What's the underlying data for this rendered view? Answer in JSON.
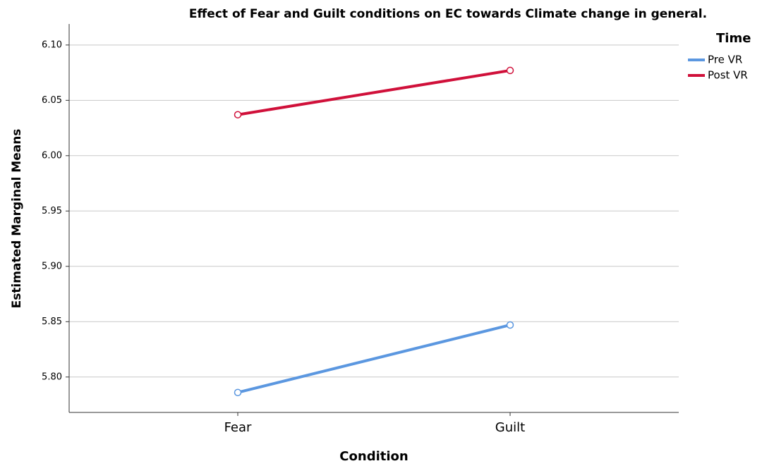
{
  "chart_data": {
    "type": "line",
    "title": "Effect of Fear and Guilt conditions on EC towards Climate change in general.",
    "x_label": "Condition",
    "y_label": "Estimated Marginal Means",
    "legend_title": "Time",
    "legend_position": "upper right",
    "grid": true,
    "categories": [
      "Fear",
      "Guilt"
    ],
    "series": [
      {
        "name": "Pre VR",
        "color": "#5b97e0",
        "values": [
          5.786,
          5.847
        ]
      },
      {
        "name": "Post VR",
        "color": "#d0103a",
        "values": [
          6.037,
          6.077
        ]
      }
    ],
    "ylim": [
      5.768,
      6.119
    ],
    "yticks": [
      {
        "value": 5.8,
        "label": "5.80"
      },
      {
        "value": 5.85,
        "label": "5.85"
      },
      {
        "value": 5.9,
        "label": "5.90"
      },
      {
        "value": 5.95,
        "label": "5.95"
      },
      {
        "value": 6.0,
        "label": "6.00"
      },
      {
        "value": 6.05,
        "label": "6.05"
      },
      {
        "value": 6.1,
        "label": "6.10"
      }
    ]
  }
}
